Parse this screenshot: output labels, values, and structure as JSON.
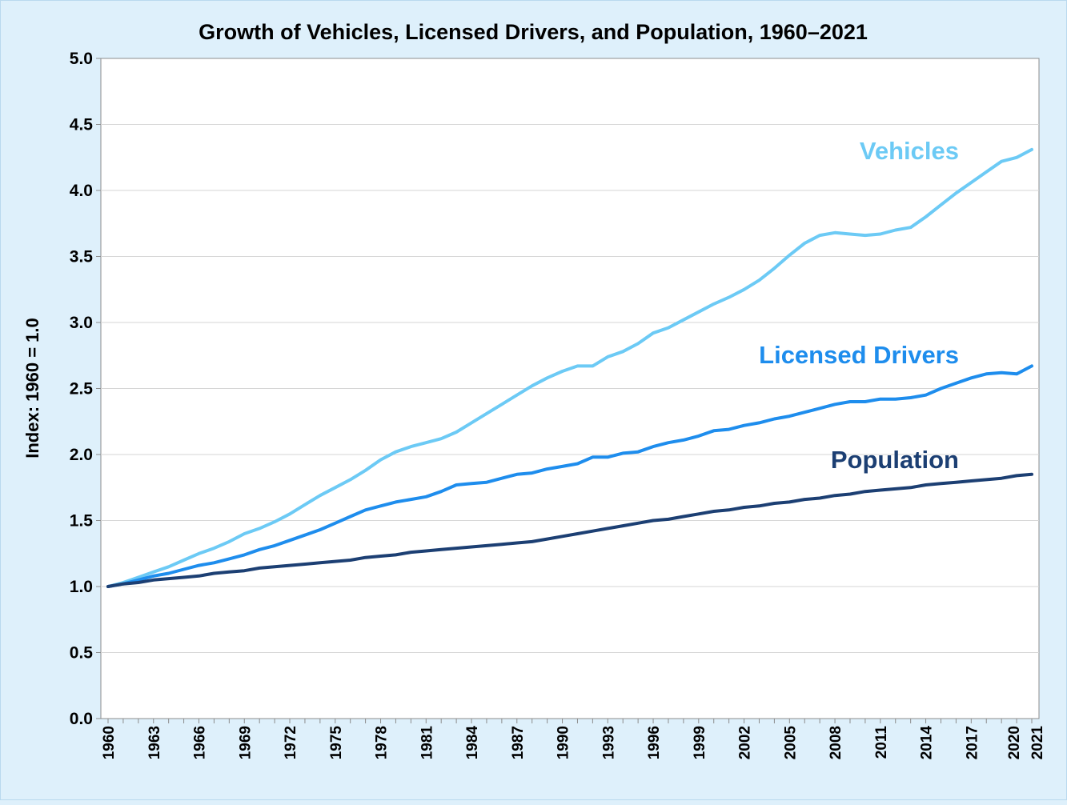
{
  "chart_data": {
    "type": "line",
    "title": "Growth of Vehicles, Licensed Drivers, and Population, 1960–2021",
    "xlabel": "",
    "ylabel": "Index: 1960 = 1.0",
    "ylim": [
      0,
      5
    ],
    "yticks": [
      "0.0",
      "0.5",
      "1.0",
      "1.5",
      "2.0",
      "2.5",
      "3.0",
      "3.5",
      "4.0",
      "4.5",
      "5.0"
    ],
    "xlim": [
      1960,
      2021
    ],
    "xticks": [
      "1960",
      "1963",
      "1966",
      "1969",
      "1972",
      "1975",
      "1978",
      "1981",
      "1984",
      "1987",
      "1990",
      "1993",
      "1996",
      "1999",
      "2002",
      "2005",
      "2008",
      "2011",
      "2014",
      "2017",
      "2020",
      "2021"
    ],
    "grid": true,
    "x": [
      1960,
      1961,
      1962,
      1963,
      1964,
      1965,
      1966,
      1967,
      1968,
      1969,
      1970,
      1971,
      1972,
      1973,
      1974,
      1975,
      1976,
      1977,
      1978,
      1979,
      1980,
      1981,
      1982,
      1983,
      1984,
      1985,
      1986,
      1987,
      1988,
      1989,
      1990,
      1991,
      1992,
      1993,
      1994,
      1995,
      1996,
      1997,
      1998,
      1999,
      2000,
      2001,
      2002,
      2003,
      2004,
      2005,
      2006,
      2007,
      2008,
      2009,
      2010,
      2011,
      2012,
      2013,
      2014,
      2015,
      2016,
      2017,
      2018,
      2019,
      2020,
      2021
    ],
    "series": [
      {
        "name": "Vehicles",
        "color": "#6ccaf5",
        "values": [
          1.0,
          1.03,
          1.07,
          1.11,
          1.15,
          1.2,
          1.25,
          1.29,
          1.34,
          1.4,
          1.44,
          1.49,
          1.55,
          1.62,
          1.69,
          1.75,
          1.81,
          1.88,
          1.96,
          2.02,
          2.06,
          2.09,
          2.12,
          2.17,
          2.24,
          2.31,
          2.38,
          2.45,
          2.52,
          2.58,
          2.63,
          2.67,
          2.67,
          2.74,
          2.78,
          2.84,
          2.92,
          2.96,
          3.02,
          3.08,
          3.14,
          3.19,
          3.25,
          3.32,
          3.41,
          3.51,
          3.6,
          3.66,
          3.68,
          3.67,
          3.66,
          3.67,
          3.7,
          3.72,
          3.8,
          3.89,
          3.98,
          4.06,
          4.14,
          4.22,
          4.25,
          4.31
        ]
      },
      {
        "name": "Licensed Drivers",
        "color": "#1e8ded",
        "values": [
          1.0,
          1.02,
          1.05,
          1.08,
          1.1,
          1.13,
          1.16,
          1.18,
          1.21,
          1.24,
          1.28,
          1.31,
          1.35,
          1.39,
          1.43,
          1.48,
          1.53,
          1.58,
          1.61,
          1.64,
          1.66,
          1.68,
          1.72,
          1.77,
          1.78,
          1.79,
          1.82,
          1.85,
          1.86,
          1.89,
          1.91,
          1.93,
          1.98,
          1.98,
          2.01,
          2.02,
          2.06,
          2.09,
          2.11,
          2.14,
          2.18,
          2.19,
          2.22,
          2.24,
          2.27,
          2.29,
          2.32,
          2.35,
          2.38,
          2.4,
          2.4,
          2.42,
          2.42,
          2.43,
          2.45,
          2.5,
          2.54,
          2.58,
          2.61,
          2.62,
          2.61,
          2.67
        ]
      },
      {
        "name": "Population",
        "color": "#1c3f73",
        "values": [
          1.0,
          1.02,
          1.03,
          1.05,
          1.06,
          1.07,
          1.08,
          1.1,
          1.11,
          1.12,
          1.14,
          1.15,
          1.16,
          1.17,
          1.18,
          1.19,
          1.2,
          1.22,
          1.23,
          1.24,
          1.26,
          1.27,
          1.28,
          1.29,
          1.3,
          1.31,
          1.32,
          1.33,
          1.34,
          1.36,
          1.38,
          1.4,
          1.42,
          1.44,
          1.46,
          1.48,
          1.5,
          1.51,
          1.53,
          1.55,
          1.57,
          1.58,
          1.6,
          1.61,
          1.63,
          1.64,
          1.66,
          1.67,
          1.69,
          1.7,
          1.72,
          1.73,
          1.74,
          1.75,
          1.77,
          1.78,
          1.79,
          1.8,
          1.81,
          1.82,
          1.84,
          1.85
        ]
      }
    ],
    "annotations": [
      {
        "text": "Vehicles",
        "series": "Vehicles"
      },
      {
        "text": "Licensed Drivers",
        "series": "Licensed Drivers"
      },
      {
        "text": "Population",
        "series": "Population"
      }
    ]
  }
}
